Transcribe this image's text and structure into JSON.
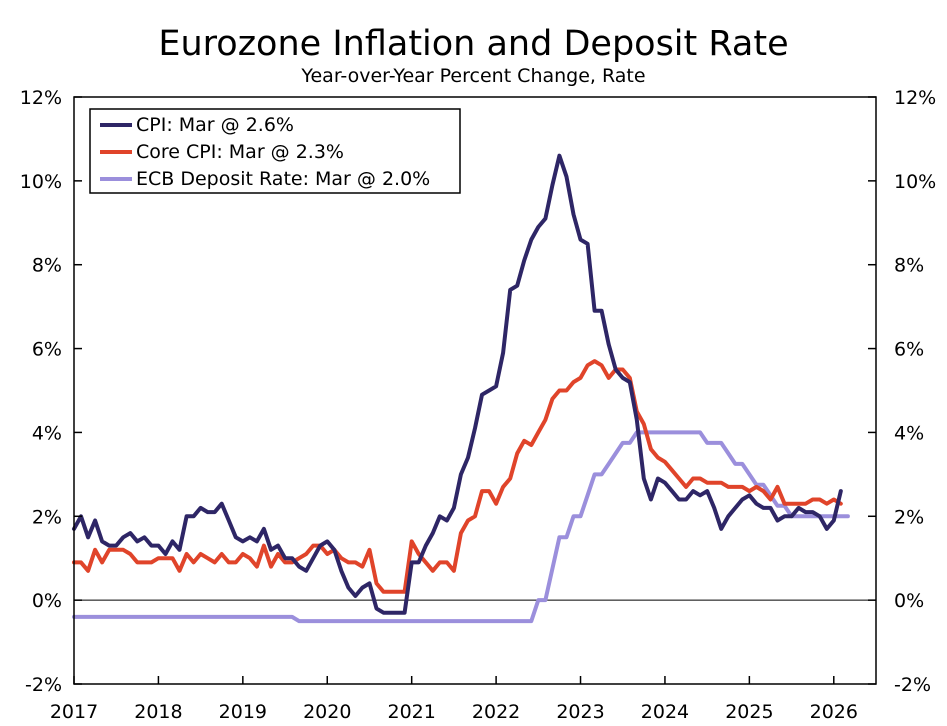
{
  "chart_data": {
    "type": "line",
    "title": "Eurozone Inflation and Deposit Rate",
    "subtitle": "Year-over-Year Percent Change, Rate",
    "ylim": [
      -2,
      12
    ],
    "yticks": [
      "-2%",
      "0%",
      "2%",
      "4%",
      "6%",
      "8%",
      "10%",
      "12%"
    ],
    "ytick_values": [
      -2,
      0,
      2,
      4,
      6,
      8,
      10,
      12
    ],
    "xlim": [
      2017.0,
      2026.5
    ],
    "xticks": [
      "2017",
      "2018",
      "2019",
      "2020",
      "2021",
      "2022",
      "2023",
      "2024",
      "2025",
      "2026"
    ],
    "xtick_values": [
      2017,
      2018,
      2019,
      2020,
      2021,
      2022,
      2023,
      2024,
      2025,
      2026
    ],
    "x_start": 2017.0,
    "x_step_months": 1,
    "legend_position": "top-left",
    "series": [
      {
        "name": "CPI: Mar @ 2.6%",
        "color": "#2e2666",
        "values": [
          1.7,
          2.0,
          1.5,
          1.9,
          1.4,
          1.3,
          1.3,
          1.5,
          1.6,
          1.4,
          1.5,
          1.3,
          1.3,
          1.1,
          1.4,
          1.2,
          2.0,
          2.0,
          2.2,
          2.1,
          2.1,
          2.3,
          1.9,
          1.5,
          1.4,
          1.5,
          1.4,
          1.7,
          1.2,
          1.3,
          1.0,
          1.0,
          0.8,
          0.7,
          1.0,
          1.3,
          1.4,
          1.2,
          0.7,
          0.3,
          0.1,
          0.3,
          0.4,
          -0.2,
          -0.3,
          -0.3,
          -0.3,
          -0.3,
          0.9,
          0.9,
          1.3,
          1.6,
          2.0,
          1.9,
          2.2,
          3.0,
          3.4,
          4.1,
          4.9,
          5.0,
          5.1,
          5.9,
          7.4,
          7.5,
          8.1,
          8.6,
          8.9,
          9.1,
          9.9,
          10.6,
          10.1,
          9.2,
          8.6,
          8.5,
          6.9,
          6.9,
          6.1,
          5.5,
          5.3,
          5.2,
          4.3,
          2.9,
          2.4,
          2.9,
          2.8,
          2.6,
          2.4,
          2.4,
          2.6,
          2.5,
          2.6,
          2.2,
          1.7,
          2.0,
          2.2,
          2.4,
          2.5,
          2.3,
          2.2,
          2.2,
          1.9,
          2.0,
          2.0,
          2.2,
          2.1,
          2.1,
          2.0,
          1.7,
          1.9,
          2.6
        ]
      },
      {
        "name": "Core CPI: Mar @ 2.3%",
        "color": "#e0442a",
        "values": [
          0.9,
          0.9,
          0.7,
          1.2,
          0.9,
          1.2,
          1.2,
          1.2,
          1.1,
          0.9,
          0.9,
          0.9,
          1.0,
          1.0,
          1.0,
          0.7,
          1.1,
          0.9,
          1.1,
          1.0,
          0.9,
          1.1,
          0.9,
          0.9,
          1.1,
          1.0,
          0.8,
          1.3,
          0.8,
          1.1,
          0.9,
          0.9,
          1.0,
          1.1,
          1.3,
          1.3,
          1.1,
          1.2,
          1.0,
          0.9,
          0.9,
          0.8,
          1.2,
          0.4,
          0.2,
          0.2,
          0.2,
          0.2,
          1.4,
          1.1,
          0.9,
          0.7,
          0.9,
          0.9,
          0.7,
          1.6,
          1.9,
          2.0,
          2.6,
          2.6,
          2.3,
          2.7,
          2.9,
          3.5,
          3.8,
          3.7,
          4.0,
          4.3,
          4.8,
          5.0,
          5.0,
          5.2,
          5.3,
          5.6,
          5.7,
          5.6,
          5.3,
          5.5,
          5.5,
          5.3,
          4.5,
          4.2,
          3.6,
          3.4,
          3.3,
          3.1,
          2.9,
          2.7,
          2.9,
          2.9,
          2.8,
          2.8,
          2.8,
          2.7,
          2.7,
          2.7,
          2.6,
          2.7,
          2.6,
          2.4,
          2.7,
          2.3,
          2.3,
          2.3,
          2.3,
          2.4,
          2.4,
          2.3,
          2.4,
          2.3
        ]
      },
      {
        "name": "ECB Deposit Rate: Mar @ 2.0%",
        "color": "#9b8fdc",
        "values": [
          -0.4,
          -0.4,
          -0.4,
          -0.4,
          -0.4,
          -0.4,
          -0.4,
          -0.4,
          -0.4,
          -0.4,
          -0.4,
          -0.4,
          -0.4,
          -0.4,
          -0.4,
          -0.4,
          -0.4,
          -0.4,
          -0.4,
          -0.4,
          -0.4,
          -0.4,
          -0.4,
          -0.4,
          -0.4,
          -0.4,
          -0.4,
          -0.4,
          -0.4,
          -0.4,
          -0.4,
          -0.4,
          -0.5,
          -0.5,
          -0.5,
          -0.5,
          -0.5,
          -0.5,
          -0.5,
          -0.5,
          -0.5,
          -0.5,
          -0.5,
          -0.5,
          -0.5,
          -0.5,
          -0.5,
          -0.5,
          -0.5,
          -0.5,
          -0.5,
          -0.5,
          -0.5,
          -0.5,
          -0.5,
          -0.5,
          -0.5,
          -0.5,
          -0.5,
          -0.5,
          -0.5,
          -0.5,
          -0.5,
          -0.5,
          -0.5,
          -0.5,
          0.0,
          0.0,
          0.75,
          1.5,
          1.5,
          2.0,
          2.0,
          2.5,
          3.0,
          3.0,
          3.25,
          3.5,
          3.75,
          3.75,
          4.0,
          4.0,
          4.0,
          4.0,
          4.0,
          4.0,
          4.0,
          4.0,
          4.0,
          4.0,
          3.75,
          3.75,
          3.75,
          3.5,
          3.25,
          3.25,
          3.0,
          2.75,
          2.75,
          2.5,
          2.25,
          2.25,
          2.0,
          2.0,
          2.0,
          2.0,
          2.0,
          2.0,
          2.0,
          2.0,
          2.0
        ]
      }
    ]
  }
}
